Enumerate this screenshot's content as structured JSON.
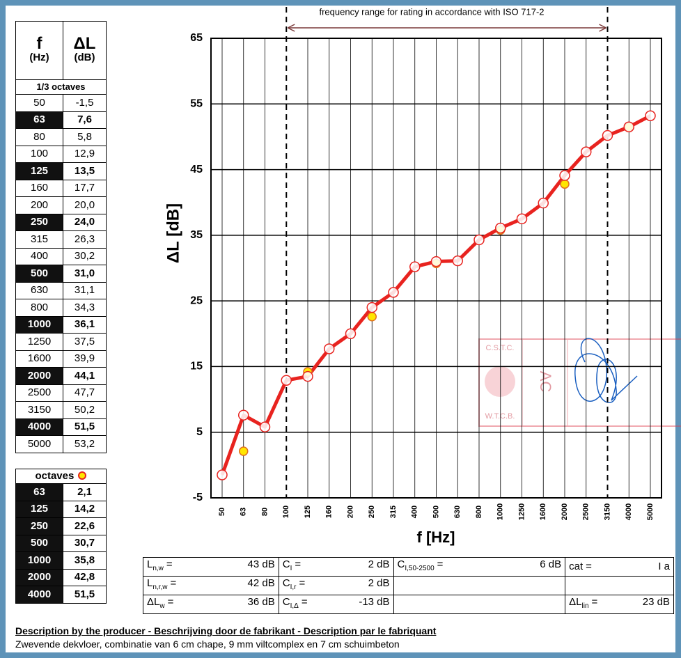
{
  "chart_data": {
    "type": "line",
    "annotation": "frequency range for rating in accordance with ISO 717-2",
    "rating_range": [
      "100",
      "3150"
    ],
    "ylabel": "ΔL [dB]",
    "xlabel": "f [Hz]",
    "categories": [
      "50",
      "63",
      "80",
      "100",
      "125",
      "160",
      "200",
      "250",
      "315",
      "400",
      "500",
      "630",
      "800",
      "1000",
      "1250",
      "1600",
      "2000",
      "2500",
      "3150",
      "4000",
      "5000"
    ],
    "series": [
      {
        "name": "1/3 octaves",
        "color": "#e8231f",
        "values": [
          -1.5,
          7.6,
          5.8,
          12.9,
          13.5,
          17.7,
          20.0,
          24.0,
          26.3,
          30.2,
          31.0,
          31.1,
          34.3,
          36.1,
          37.5,
          39.9,
          44.1,
          47.7,
          50.2,
          51.5,
          53.2
        ],
        "value_labels": [
          "-1,5",
          "7,6",
          "5,8",
          "12,9",
          "13,5",
          "17,7",
          "20,0",
          "24,0",
          "26,3",
          "30,2",
          "31,0",
          "31,1",
          "34,3",
          "36,1",
          "37,5",
          "39,9",
          "44,1",
          "47,7",
          "50,2",
          "51,5",
          "53,2"
        ]
      },
      {
        "name": "octaves",
        "color": "#ffe600",
        "values": [
          null,
          2.1,
          null,
          null,
          14.2,
          null,
          null,
          22.6,
          null,
          null,
          30.7,
          null,
          null,
          35.8,
          null,
          null,
          42.8,
          null,
          null,
          51.5,
          null
        ],
        "value_labels": [
          null,
          "2,1",
          null,
          null,
          "14,2",
          null,
          null,
          "22,6",
          null,
          null,
          "30,7",
          null,
          null,
          "35,8",
          null,
          null,
          "42,8",
          null,
          null,
          "51,5",
          null
        ]
      }
    ],
    "ylim": [
      -5,
      65
    ],
    "yticks": [
      -5,
      5,
      15,
      25,
      35,
      45,
      55,
      65
    ],
    "grid": true
  },
  "frequency_table": {
    "f": "f",
    "f_unit": "(Hz)",
    "dl": "ΔL",
    "dl_unit": "(dB)"
  },
  "ratings": [
    [
      {
        "label": "L",
        "sub": "n,w",
        "sign": "=",
        "value": "43 dB"
      },
      {
        "label": "C",
        "sub": "I",
        "sign": "=",
        "value": "2 dB"
      },
      {
        "label": "C",
        "sub": "I,50-2500",
        "sign": "=",
        "value": "6 dB"
      },
      {
        "label": "cat",
        "sign": "=",
        "value": "I a"
      }
    ],
    [
      {
        "label": "L",
        "sub": "n,r,w",
        "sign": "=",
        "value": "42 dB"
      },
      {
        "label": "C",
        "sub": "I,r",
        "sign": "=",
        "value": "2 dB"
      },
      null,
      null
    ],
    [
      {
        "label": "ΔL",
        "sub": "w",
        "sign": "=",
        "value": "36 dB"
      },
      {
        "label": "C",
        "sub": "I,Δ",
        "sign": "=",
        "value": "-13 dB"
      },
      null,
      {
        "label": "ΔL",
        "sub": "lin",
        "sign": "=",
        "value": "23 dB"
      }
    ]
  ],
  "stamp": {
    "top": "C.S.T.C.",
    "bottom": "W.T.C.B.",
    "side": "AC"
  },
  "description": {
    "title": "Description by the producer - Beschrijving door de fabrikant - Description par le fabriquant",
    "text": "Zwevende dekvloer, combinatie van 6 cm chape, 9 mm viltcomplex en 7 cm schuimbeton"
  }
}
